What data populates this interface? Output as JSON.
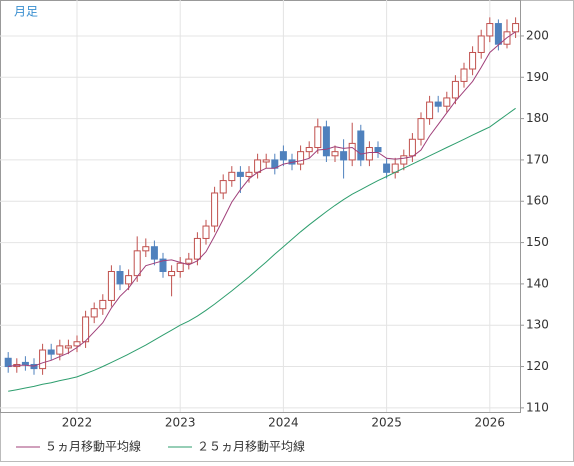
{
  "chart_data": {
    "type": "candlestick",
    "title": "月足",
    "categories": [
      null,
      null,
      null,
      null,
      null,
      null,
      null,
      null,
      "2022",
      null,
      null,
      null,
      null,
      null,
      null,
      null,
      null,
      null,
      null,
      null,
      "2023",
      null,
      null,
      null,
      null,
      null,
      null,
      null,
      null,
      null,
      null,
      null,
      "2024",
      null,
      null,
      null,
      null,
      null,
      null,
      null,
      null,
      null,
      null,
      null,
      "2025",
      null,
      null,
      null,
      null,
      null,
      null,
      null,
      null,
      null,
      null,
      null,
      "2026",
      null,
      null,
      null
    ],
    "open": [
      122,
      120,
      121,
      120.5,
      119.5,
      124,
      123,
      124.5,
      125,
      126,
      132,
      134,
      136,
      143,
      140,
      142,
      148,
      149,
      146,
      142,
      143,
      145,
      146,
      151,
      154,
      162,
      165,
      167,
      166,
      167,
      169.5,
      170,
      172,
      170,
      169,
      172,
      173,
      178,
      171,
      172,
      170,
      177,
      170,
      173,
      169,
      167,
      169,
      171,
      175,
      180,
      184,
      183,
      185,
      189,
      192,
      196,
      200,
      203,
      198,
      201
    ],
    "high": [
      123.5,
      122,
      122.5,
      122,
      125.5,
      125.5,
      126.5,
      126.5,
      127.5,
      133.5,
      135.5,
      137.5,
      144.5,
      144.5,
      143.5,
      151.5,
      151,
      150.5,
      147.5,
      144.5,
      146.5,
      147.5,
      152.5,
      155.5,
      163.5,
      166.5,
      168.5,
      168.5,
      168.5,
      171.5,
      171.5,
      171.5,
      173.5,
      171.5,
      173.5,
      174.5,
      180,
      179.5,
      173.5,
      175,
      179,
      178.5,
      174.5,
      174.5,
      170.5,
      170.5,
      172.5,
      176.5,
      181.5,
      185.5,
      185.5,
      186.5,
      190.5,
      193.5,
      197.5,
      201.5,
      204.5,
      204,
      204,
      204.5
    ],
    "low": [
      118.5,
      118.5,
      119,
      118,
      118,
      121.5,
      121.5,
      123,
      123.5,
      124.5,
      130.5,
      132.5,
      134.5,
      138.5,
      138.5,
      140.5,
      146.5,
      144.5,
      141.5,
      137,
      141.5,
      143.5,
      144.5,
      149.5,
      152.5,
      160.5,
      163.5,
      162,
      164.5,
      165.5,
      168,
      166.5,
      168.5,
      167.5,
      167.5,
      170.5,
      171.5,
      169.5,
      169.5,
      165.5,
      168.5,
      168.5,
      168.5,
      170.5,
      165.5,
      165.5,
      167.5,
      169.5,
      173.5,
      178.5,
      181.5,
      181.5,
      183.5,
      187.5,
      190.5,
      194.5,
      198.5,
      196.5,
      197,
      199.5
    ],
    "close": [
      120,
      120.5,
      120.5,
      119.5,
      124,
      123,
      125,
      125,
      126,
      132,
      134,
      136,
      143,
      140,
      142,
      148,
      149,
      146,
      143,
      143,
      145,
      146,
      151,
      154,
      162,
      165,
      167,
      166,
      167,
      170,
      170,
      168,
      170,
      169,
      172,
      173,
      178,
      171,
      172,
      170,
      174,
      170,
      173,
      172,
      167,
      169,
      171,
      175,
      180,
      184,
      183,
      185,
      189,
      192,
      196,
      200,
      203,
      198,
      201,
      203
    ],
    "up_color": "#c0504d",
    "down_color": "#4f81bd",
    "series": [
      {
        "name": "５ヵ月移動平均線",
        "color": "#a0407a",
        "values": [
          120,
          120.3,
          120.3,
          120.1,
          120.9,
          121.5,
          122.4,
          123.3,
          124.6,
          126.2,
          128.4,
          130.6,
          134.2,
          137,
          139,
          141.8,
          144.4,
          145,
          145.6,
          145.8,
          145.2,
          144.6,
          145.6,
          147.8,
          151.6,
          155.6,
          159.8,
          162.8,
          165.4,
          167,
          168,
          168,
          169,
          169.4,
          169.8,
          170.4,
          172.4,
          172.6,
          173.2,
          172.8,
          173,
          171.4,
          171.8,
          171.8,
          170.4,
          170.2,
          170.4,
          170.8,
          172.4,
          175.8,
          178.6,
          181.4,
          184.2,
          186.6,
          189,
          192.4,
          196,
          197.8,
          199.6,
          201
        ]
      },
      {
        "name": "２５ヵ月移動平均線",
        "color": "#2e9e6e",
        "values": [
          114,
          114.4,
          114.8,
          115.2,
          115.7,
          116.1,
          116.6,
          117,
          117.5,
          118.3,
          119.1,
          120,
          121,
          122,
          123,
          124.1,
          125.2,
          126.4,
          127.6,
          128.8,
          130,
          131,
          132.2,
          133.6,
          135.1,
          136.7,
          138.3,
          140,
          141.7,
          143.5,
          145.3,
          147.2,
          149,
          150.8,
          152.6,
          154.3,
          155.9,
          157.5,
          159,
          160.4,
          161.7,
          162.8,
          163.9,
          165,
          166,
          167,
          168,
          169,
          170,
          171,
          172,
          173,
          174,
          175,
          176,
          177,
          178,
          179.5,
          181,
          182.5
        ]
      }
    ],
    "ylim": [
      109,
      208.7
    ],
    "yticks": [
      110,
      120,
      130,
      140,
      150,
      160,
      170,
      180,
      190,
      200
    ],
    "grid": true
  }
}
